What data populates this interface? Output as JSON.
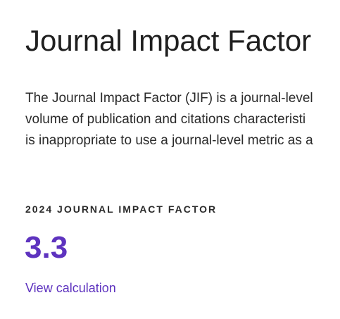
{
  "section": {
    "title": "Journal Impact Factor",
    "description_lines": [
      "The Journal Impact Factor (JIF) is a journal-level",
      "volume of publication and citations characteristi",
      "is inappropriate to use a journal-level metric as a"
    ]
  },
  "metric": {
    "label": "2024 JOURNAL IMPACT FACTOR",
    "value": "3.3",
    "link_label": "View calculation"
  },
  "colors": {
    "accent": "#5e33bf",
    "text": "#1f1f1f"
  }
}
